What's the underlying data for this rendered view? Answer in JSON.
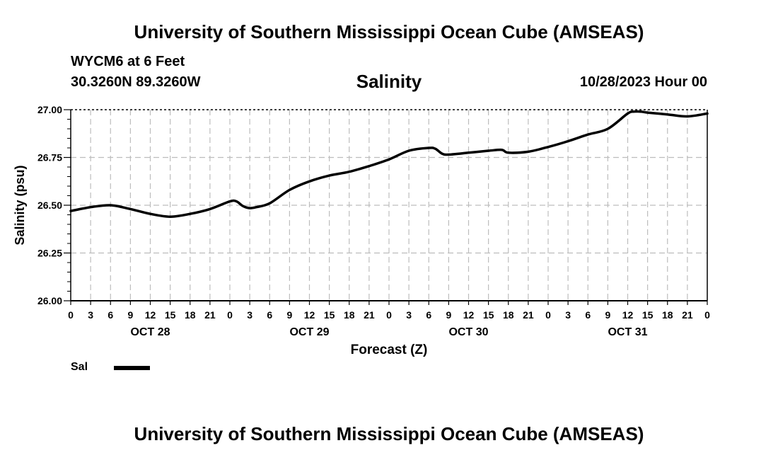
{
  "header": {
    "title": "University of Southern Mississippi Ocean Cube (AMSEAS)",
    "station": "WYCM6 at 6 Feet",
    "coordinates": "30.3260N  89.3260W",
    "datetime": "10/28/2023 Hour 00"
  },
  "footer": {
    "title": "University of Southern Mississippi Ocean Cube (AMSEAS)"
  },
  "legend": {
    "label": "Sal",
    "color": "#000000"
  },
  "chart_data": {
    "type": "line",
    "title": "Salinity",
    "xlabel": "Forecast (Z)",
    "ylabel": "Salinity (psu)",
    "xlim": [
      0,
      96
    ],
    "ylim": [
      26.0,
      27.0
    ],
    "yticks": [
      "26.00",
      "26.25",
      "26.50",
      "26.75",
      "27.00"
    ],
    "yticks_values": [
      26.0,
      26.25,
      26.5,
      26.75,
      27.0
    ],
    "xtick_hours": [
      0,
      3,
      6,
      9,
      12,
      15,
      18,
      21,
      24,
      27,
      30,
      33,
      36,
      39,
      42,
      45,
      48,
      51,
      54,
      57,
      60,
      63,
      66,
      69,
      72,
      75,
      78,
      81,
      84,
      87,
      90,
      93,
      96
    ],
    "xtick_labels": [
      "0",
      "3",
      "6",
      "9",
      "12",
      "15",
      "18",
      "21",
      "0",
      "3",
      "6",
      "9",
      "12",
      "15",
      "18",
      "21",
      "0",
      "3",
      "6",
      "9",
      "12",
      "15",
      "18",
      "21",
      "0",
      "3",
      "6",
      "9",
      "12",
      "15",
      "18",
      "21",
      "0"
    ],
    "day_labels": [
      {
        "hour": 12,
        "label": "OCT 28"
      },
      {
        "hour": 36,
        "label": "OCT 29"
      },
      {
        "hour": 60,
        "label": "OCT 30"
      },
      {
        "hour": 84,
        "label": "OCT 31"
      }
    ],
    "grid": true,
    "series": [
      {
        "name": "Sal",
        "x": [
          0,
          3,
          6,
          9,
          12,
          15,
          18,
          21,
          24,
          25,
          26,
          27,
          28,
          30,
          33,
          36,
          39,
          42,
          45,
          48,
          51,
          54,
          55,
          56,
          57,
          60,
          63,
          65,
          66,
          69,
          72,
          75,
          78,
          81,
          84,
          85,
          86,
          87,
          90,
          93,
          96
        ],
        "values": [
          26.47,
          26.49,
          26.5,
          26.48,
          26.455,
          26.44,
          26.455,
          26.48,
          26.52,
          26.52,
          26.495,
          26.485,
          26.49,
          26.51,
          26.58,
          26.625,
          26.655,
          26.675,
          26.705,
          26.74,
          26.785,
          26.8,
          26.795,
          26.77,
          26.765,
          26.775,
          26.785,
          26.79,
          26.775,
          26.78,
          26.805,
          26.835,
          26.87,
          26.9,
          26.98,
          26.99,
          26.99,
          26.985,
          26.975,
          26.965,
          26.98
        ]
      }
    ]
  }
}
